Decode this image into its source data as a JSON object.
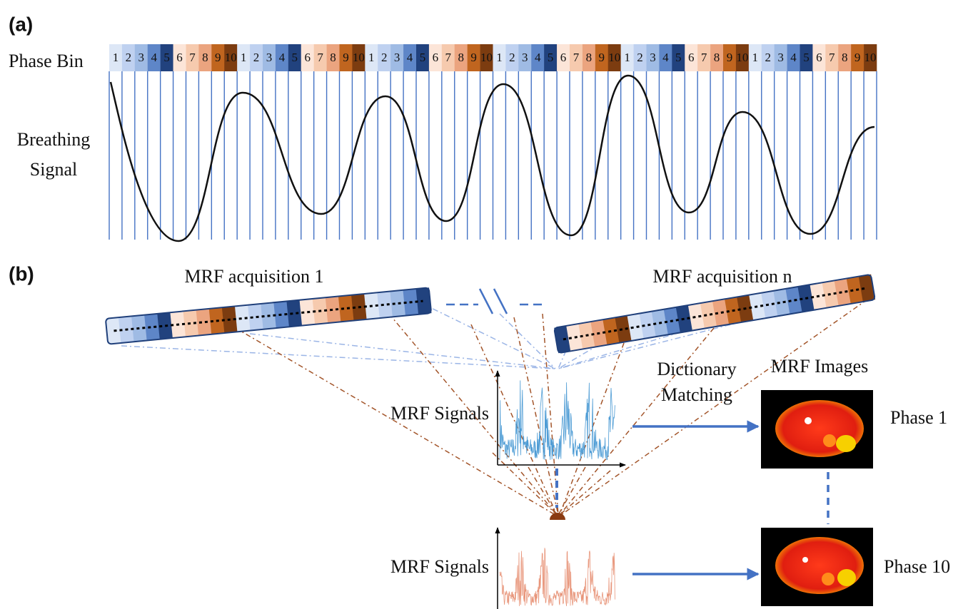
{
  "panel_a": {
    "label": "(a)",
    "phase_bin": {
      "label": "Phase Bin",
      "bins": [
        [
          1,
          2,
          3,
          4,
          5,
          6,
          7,
          8,
          9,
          10
        ],
        [
          1,
          2,
          3,
          4,
          5,
          6,
          7,
          8,
          9,
          10
        ],
        [
          1,
          2,
          3,
          4,
          5,
          6,
          7,
          8,
          9,
          10
        ],
        [
          1,
          2,
          3,
          4,
          5,
          6,
          7,
          8,
          9,
          10
        ],
        [
          1,
          2,
          3,
          4,
          5,
          6,
          7,
          8,
          9,
          10
        ],
        [
          1,
          2,
          3,
          4,
          5,
          6,
          7,
          8,
          9,
          10
        ]
      ]
    },
    "signal_label": [
      "Breathing",
      "Signal"
    ]
  },
  "panel_b": {
    "label": "(b)",
    "acquisitions": [
      "MRF acquisition 1",
      "MRF acquisition n"
    ],
    "signals_labels": [
      "MRF Signals",
      "MRF Signals"
    ],
    "matching_label": [
      "Dictionary",
      "Matching"
    ],
    "images_label": "MRF Images",
    "phases": [
      "Phase 1",
      "Phase 10"
    ]
  }
}
